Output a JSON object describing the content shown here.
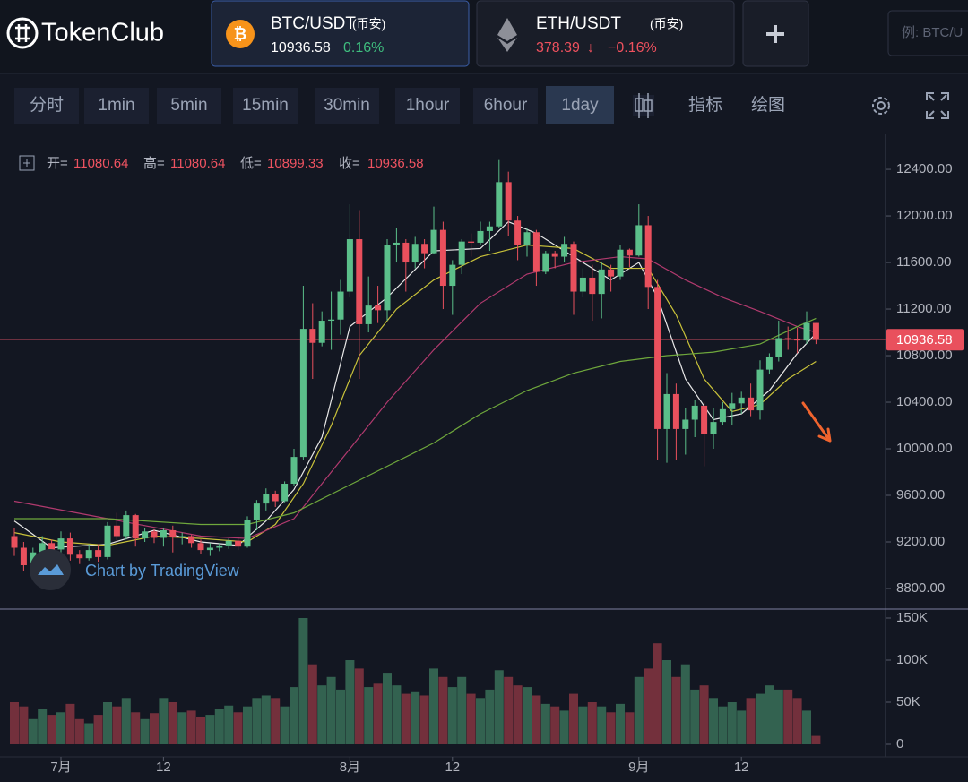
{
  "header": {
    "logo": "TokenClub",
    "tabs": [
      {
        "icon": "₿",
        "pair": "BTC/USDT",
        "exchange": "(币安)",
        "change": "0.16%"
      },
      {
        "pair": "ETH/USDT",
        "exchange": "(币安)",
        "price": "378.39",
        "direction": "↓",
        "change": "−0.16%"
      }
    ],
    "search_placeholder": "例: BTC/U"
  },
  "toolbar": {
    "items": [
      "分时",
      "1min",
      "5min",
      "15min",
      "30min",
      "1hour",
      "6hour",
      "1day"
    ],
    "active": 7,
    "indicators": "指标",
    "drawing": "绘图"
  },
  "info": {
    "open": "开=",
    "high": "高=",
    "low": "低=",
    "close": "收="
  },
  "watermark": "Chart by TradingView",
  "chart_data": {
    "type": "candlestick",
    "categories": [
      null,
      null,
      null,
      null,
      null,
      "7月",
      null,
      null,
      null,
      null,
      null,
      null,
      null,
      null,
      null,
      null,
      "12",
      null,
      null,
      null,
      null,
      null,
      null,
      null,
      null,
      null,
      null,
      null,
      null,
      null,
      null,
      null,
      null,
      null,
      null,
      null,
      "8月",
      null,
      null,
      null,
      null,
      null,
      null,
      null,
      null,
      null,
      null,
      "12",
      null,
      null,
      null,
      null,
      null,
      null,
      null,
      null,
      null,
      null,
      null,
      null,
      null,
      null,
      null,
      null,
      null,
      null,
      null,
      "9月",
      null,
      null,
      null,
      null,
      null,
      null,
      null,
      null,
      null,
      null,
      "12",
      null,
      null,
      null,
      null,
      null,
      null,
      null,
      null
    ],
    "open": [
      9250,
      9150,
      9000,
      9110,
      9190,
      9135,
      9230,
      9090,
      9060,
      9130,
      9070,
      9340,
      9250,
      9430,
      9230,
      9290,
      9235,
      9300,
      9240,
      9250,
      9190,
      9130,
      9150,
      9170,
      9210,
      9160,
      9390,
      9530,
      9610,
      9550,
      9700,
      9930,
      11030,
      10910,
      11100,
      11110,
      11350,
      11800,
      11070,
      11230,
      11190,
      11750,
      11770,
      11600,
      11760,
      11680,
      11880,
      11400,
      11580,
      11780,
      11770,
      11870,
      11910,
      12290,
      11960,
      11750,
      11860,
      11520,
      11680,
      11650,
      11760,
      11350,
      11470,
      11330,
      11540,
      11480,
      11710,
      11660,
      11920,
      11390,
      10170,
      10470,
      10170,
      10250,
      10370,
      10130,
      10230,
      10340,
      10390,
      10440,
      10330,
      10680,
      10790,
      10950,
      10940,
      10930,
      11080.64
    ],
    "high": [
      9320,
      9200,
      9150,
      9250,
      9220,
      9290,
      9280,
      9130,
      9180,
      9180,
      9370,
      9450,
      9470,
      9440,
      9320,
      9310,
      9320,
      9340,
      9280,
      9260,
      9220,
      9190,
      9190,
      9230,
      9230,
      9420,
      9560,
      9660,
      9640,
      9720,
      10000,
      11400,
      11250,
      11180,
      11350,
      11450,
      12100,
      12050,
      11480,
      11400,
      11800,
      11900,
      11800,
      11820,
      11800,
      12080,
      11950,
      11620,
      11800,
      11850,
      11950,
      11950,
      12480,
      12380,
      12000,
      11900,
      11880,
      11700,
      11700,
      11820,
      11780,
      11550,
      11580,
      11600,
      11580,
      11750,
      11720,
      12100,
      12000,
      11450,
      10650,
      10560,
      10350,
      10420,
      10400,
      10350,
      10400,
      10480,
      10490,
      10560,
      10760,
      10820,
      11100,
      11050,
      11040,
      11180,
      11080.64
    ],
    "low": [
      9080,
      8950,
      8900,
      9050,
      9080,
      9080,
      9040,
      9010,
      9040,
      9030,
      9050,
      9200,
      9220,
      9160,
      9200,
      9190,
      9160,
      9110,
      9180,
      9150,
      9100,
      9080,
      9120,
      9140,
      9130,
      9150,
      9300,
      9470,
      9500,
      9540,
      9680,
      9900,
      10600,
      10880,
      10850,
      10980,
      11300,
      10600,
      11000,
      11080,
      11100,
      11600,
      11350,
      11550,
      11550,
      11670,
      11200,
      11150,
      11500,
      11650,
      11750,
      11700,
      11900,
      11830,
      11620,
      11650,
      11400,
      11500,
      11550,
      11600,
      11150,
      11300,
      11100,
      11120,
      11350,
      11450,
      11560,
      11650,
      11200,
      9900,
      9880,
      9900,
      9950,
      10100,
      9850,
      10000,
      10200,
      10200,
      10300,
      10280,
      10250,
      10640,
      10750,
      10850,
      10820,
      10900,
      10899.33
    ],
    "close": [
      9150,
      9000,
      9110,
      9190,
      9135,
      9230,
      9090,
      9060,
      9130,
      9070,
      9340,
      9250,
      9430,
      9230,
      9290,
      9235,
      9300,
      9240,
      9250,
      9190,
      9130,
      9150,
      9170,
      9210,
      9160,
      9390,
      9530,
      9610,
      9550,
      9700,
      9930,
      11030,
      10910,
      11100,
      11110,
      11350,
      11800,
      11070,
      11230,
      11190,
      11750,
      11770,
      11600,
      11760,
      11680,
      11880,
      11400,
      11580,
      11780,
      11770,
      11870,
      11910,
      12290,
      11960,
      11750,
      11860,
      11520,
      11680,
      11650,
      11760,
      11350,
      11470,
      11330,
      11540,
      11480,
      11710,
      11660,
      11920,
      11390,
      10170,
      10470,
      10170,
      10250,
      10370,
      10130,
      10230,
      10340,
      10390,
      10440,
      10330,
      10680,
      10790,
      10950,
      10940,
      10930,
      11080.64,
      10936.58
    ],
    "volume": [
      50000,
      45000,
      30000,
      42000,
      35000,
      38000,
      48000,
      30000,
      25000,
      35000,
      50000,
      45000,
      55000,
      38000,
      30000,
      37000,
      55000,
      50000,
      38000,
      40000,
      33000,
      35000,
      42000,
      46000,
      38000,
      45000,
      55000,
      58000,
      55000,
      45000,
      68000,
      150000,
      95000,
      70000,
      80000,
      65000,
      100000,
      90000,
      68000,
      72000,
      85000,
      70000,
      60000,
      63000,
      58000,
      90000,
      80000,
      68000,
      80000,
      60000,
      55000,
      65000,
      88000,
      80000,
      70000,
      68000,
      58000,
      48000,
      45000,
      40000,
      60000,
      45000,
      50000,
      45000,
      38000,
      48000,
      38000,
      80000,
      90000,
      120000,
      100000,
      80000,
      95000,
      65000,
      70000,
      55000,
      45000,
      50000,
      40000,
      55000,
      60000,
      70000,
      65000,
      65000,
      55000,
      40000,
      10000
    ],
    "up_color": "#5bbf8a",
    "down_color": "#e9505d",
    "ylim": [
      8623,
      12662
    ],
    "yticks": [
      {
        "value": 8800,
        "label": "8800.00"
      },
      {
        "value": 9200,
        "label": "9200.00"
      },
      {
        "value": 9600,
        "label": "9600.00"
      },
      {
        "value": 10000,
        "label": "10000.00"
      },
      {
        "value": 10400,
        "label": "10400.00"
      },
      {
        "value": 10800,
        "label": "10800.00"
      },
      {
        "value": 11200,
        "label": "11200.00"
      },
      {
        "value": 11600,
        "label": "11600.00"
      },
      {
        "value": 12000,
        "label": "12000.00"
      },
      {
        "value": 12400,
        "label": "12400.00"
      }
    ],
    "volume_ylim": [
      -14900,
      158500
    ],
    "volume_yticks": [
      0,
      {
        "value": 50000,
        "label": "50K"
      },
      {
        "value": 100000,
        "label": "100K"
      },
      {
        "value": 150000,
        "label": "150K"
      }
    ],
    "ma_series": [
      {
        "color": "#e8e8e8",
        "x": [
          0,
          4,
          10,
          15,
          20,
          24,
          27,
          30,
          33,
          36,
          40,
          45,
          50,
          53,
          56,
          60,
          64,
          67,
          69,
          72,
          75,
          78,
          81,
          84,
          86
        ],
        "values": [
          9380,
          9150,
          9180,
          9300,
          9200,
          9170,
          9380,
          9650,
          10100,
          11050,
          11300,
          11700,
          11720,
          11950,
          11850,
          11650,
          11450,
          11600,
          11300,
          10600,
          10250,
          10300,
          10500,
          10820,
          10990
        ]
      },
      {
        "color": "#c9c23a",
        "x": [
          0,
          5,
          10,
          15,
          20,
          25,
          28,
          31,
          34,
          37,
          41,
          45,
          50,
          55,
          60,
          64,
          68,
          71,
          74,
          77,
          80,
          83,
          86
        ],
        "values": [
          9280,
          9200,
          9170,
          9250,
          9230,
          9200,
          9350,
          9700,
          10200,
          10800,
          11200,
          11450,
          11650,
          11750,
          11720,
          11550,
          11550,
          11150,
          10600,
          10320,
          10380,
          10600,
          10750
        ]
      },
      {
        "color": "#b13a6e",
        "x": [
          0,
          10,
          20,
          25,
          30,
          35,
          40,
          45,
          50,
          55,
          60,
          65,
          68,
          72,
          76,
          80,
          84,
          86
        ],
        "values": [
          9550,
          9400,
          9250,
          9230,
          9400,
          9900,
          10400,
          10850,
          11250,
          11500,
          11600,
          11650,
          11630,
          11450,
          11300,
          11180,
          11050,
          11000
        ]
      },
      {
        "color": "#6fa83c",
        "x": [
          0,
          10,
          20,
          25,
          30,
          35,
          40,
          45,
          50,
          55,
          60,
          65,
          70,
          75,
          80,
          84,
          86
        ],
        "values": [
          9400,
          9400,
          9350,
          9350,
          9450,
          9650,
          9850,
          10050,
          10300,
          10500,
          10650,
          10750,
          10800,
          10830,
          10900,
          11050,
          11120
        ]
      }
    ]
  }
}
